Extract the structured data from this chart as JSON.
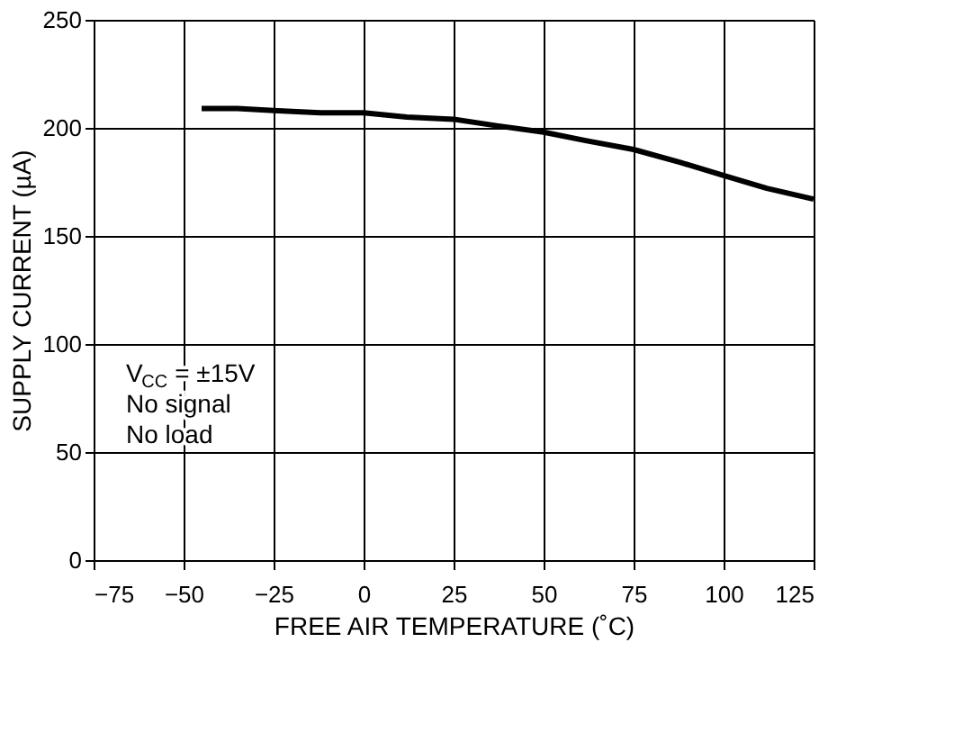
{
  "chart_data": {
    "type": "line",
    "xlabel": "FREE AIR TEMPERATURE (˚C)",
    "ylabel": "SUPPLY CURRENT (µA)",
    "x": [
      -45,
      -35,
      -25,
      -12,
      0,
      12,
      25,
      37,
      50,
      62,
      75,
      88,
      100,
      112,
      125
    ],
    "series": [
      {
        "color": "#000000",
        "values": [
          209,
          209,
          208,
          207,
          207,
          205,
          204,
          201,
          198,
          194,
          190,
          184,
          178,
          172,
          167
        ]
      }
    ],
    "xlim": [
      -75,
      125
    ],
    "xticks": [
      -75,
      -50,
      -25,
      0,
      25,
      50,
      75,
      100,
      125
    ],
    "ylim": [
      0,
      250
    ],
    "yticks": [
      0,
      50,
      100,
      150,
      200,
      250
    ],
    "grid": true,
    "marker": "none",
    "line_style": "solid",
    "annotations": [
      "V$_{CC}$ = ±15V",
      "No signal",
      "No load"
    ]
  }
}
